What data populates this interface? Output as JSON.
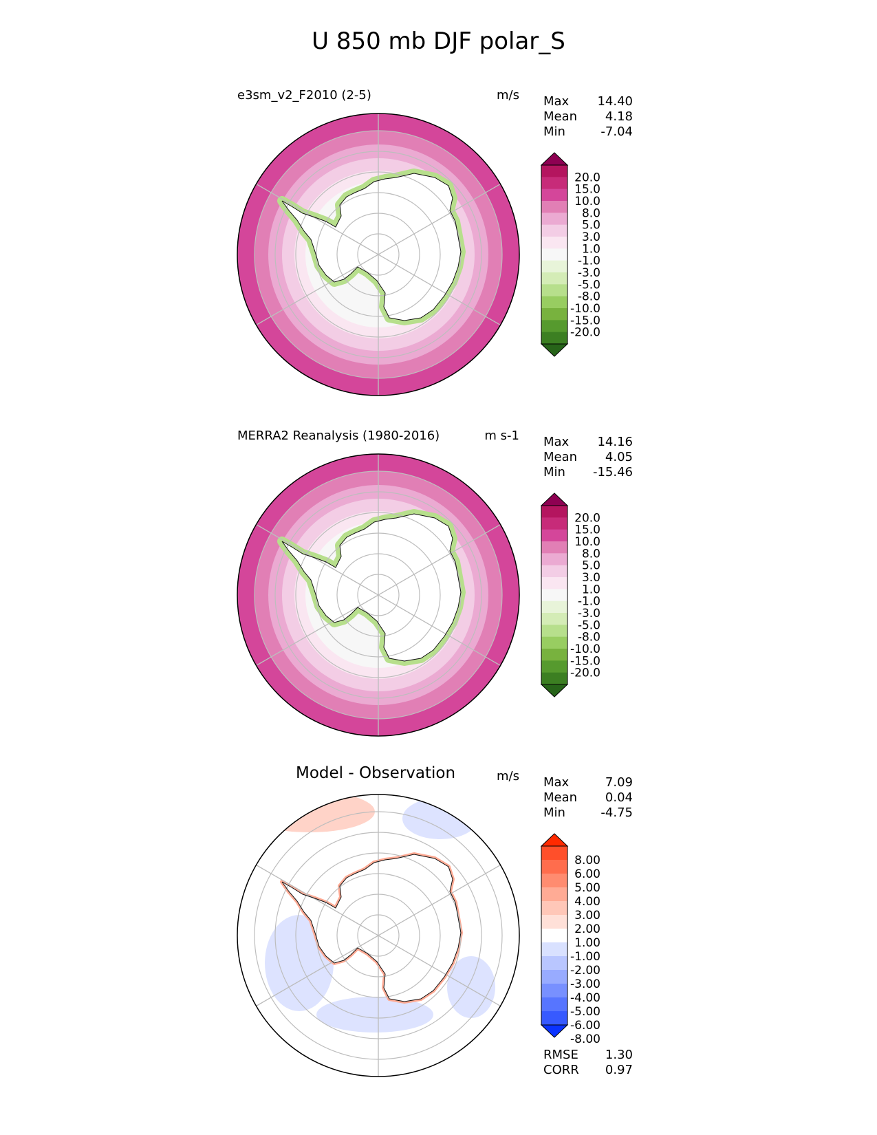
{
  "title": "U 850 mb DJF polar_S",
  "panels": [
    {
      "id": "test",
      "title": "e3sm_v2_F2010 (2-5)",
      "units": "m/s",
      "stats": [
        {
          "label": "Max",
          "value": "14.40"
        },
        {
          "label": "Mean",
          "value": "4.18"
        },
        {
          "label": "Min",
          "value": "-7.04"
        }
      ],
      "colorbar": {
        "ticks": [
          "20.0",
          "15.0",
          "10.0",
          "8.0",
          "5.0",
          "3.0",
          "1.0",
          "-1.0",
          "-3.0",
          "-5.0",
          "-8.0",
          "-10.0",
          "-15.0",
          "-20.0"
        ],
        "colors": [
          "#8e0152",
          "#b4155f",
          "#c72b79",
          "#d4469a",
          "#e17fb5",
          "#ebaad2",
          "#f3cde5",
          "#fae6f1",
          "#f7f7f7",
          "#e8f4d9",
          "#d4ecb6",
          "#b7df8c",
          "#98cd61",
          "#78b23e",
          "#569a2e",
          "#3c7f22",
          "#276419"
        ]
      }
    },
    {
      "id": "reference",
      "title": "MERRA2 Reanalysis (1980-2016)",
      "units": "m s-1",
      "stats": [
        {
          "label": "Max",
          "value": "14.16"
        },
        {
          "label": "Mean",
          "value": "4.05"
        },
        {
          "label": "Min",
          "value": "-15.46"
        }
      ],
      "colorbar": {
        "ticks": [
          "20.0",
          "15.0",
          "10.0",
          "8.0",
          "5.0",
          "3.0",
          "1.0",
          "-1.0",
          "-3.0",
          "-5.0",
          "-8.0",
          "-10.0",
          "-15.0",
          "-20.0"
        ],
        "colors": [
          "#8e0152",
          "#b4155f",
          "#c72b79",
          "#d4469a",
          "#e17fb5",
          "#ebaad2",
          "#f3cde5",
          "#fae6f1",
          "#f7f7f7",
          "#e8f4d9",
          "#d4ecb6",
          "#b7df8c",
          "#98cd61",
          "#78b23e",
          "#569a2e",
          "#3c7f22",
          "#276419"
        ]
      }
    },
    {
      "id": "diff",
      "title": "Model - Observation",
      "units": "m/s",
      "stats": [
        {
          "label": "Max",
          "value": "7.09"
        },
        {
          "label": "Mean",
          "value": "0.04"
        },
        {
          "label": "Min",
          "value": "-4.75"
        }
      ],
      "metrics": [
        {
          "label": "RMSE",
          "value": "1.30"
        },
        {
          "label": "CORR",
          "value": "0.97"
        }
      ],
      "colorbar": {
        "ticks": [
          "8.00",
          "6.00",
          "5.00",
          "4.00",
          "3.00",
          "2.00",
          "1.00",
          "-1.00",
          "-2.00",
          "-3.00",
          "-4.00",
          "-5.00",
          "-6.00",
          "-8.00"
        ],
        "colors": [
          "#ff2a00",
          "#ff4f2a",
          "#ff6d4d",
          "#ff8c70",
          "#ffab95",
          "#ffc7b8",
          "#ffe0d8",
          "#ffffff",
          "#d9e1ff",
          "#b9c6ff",
          "#98abff",
          "#7890ff",
          "#5775ff",
          "#375aff",
          "#0a33ff"
        ]
      }
    }
  ],
  "chart_data": [
    {
      "type": "heatmap",
      "title": "e3sm_v2_F2010 (2-5)",
      "units": "m/s",
      "projection": "polar south",
      "max": 14.4,
      "mean": 4.18,
      "min": -7.04,
      "levels": [
        -20,
        -15,
        -10,
        -8,
        -5,
        -3,
        -1,
        1,
        3,
        5,
        8,
        10,
        15,
        20
      ]
    },
    {
      "type": "heatmap",
      "title": "MERRA2 Reanalysis (1980-2016)",
      "units": "m s-1",
      "projection": "polar south",
      "max": 14.16,
      "mean": 4.05,
      "min": -15.46,
      "levels": [
        -20,
        -15,
        -10,
        -8,
        -5,
        -3,
        -1,
        1,
        3,
        5,
        8,
        10,
        15,
        20
      ]
    },
    {
      "type": "heatmap",
      "title": "Model - Observation",
      "units": "m/s",
      "projection": "polar south",
      "max": 7.09,
      "mean": 0.04,
      "min": -4.75,
      "rmse": 1.3,
      "corr": 0.97,
      "levels": [
        -8,
        -6,
        -5,
        -4,
        -3,
        -2,
        -1,
        1,
        2,
        3,
        4,
        5,
        6,
        8
      ]
    }
  ]
}
